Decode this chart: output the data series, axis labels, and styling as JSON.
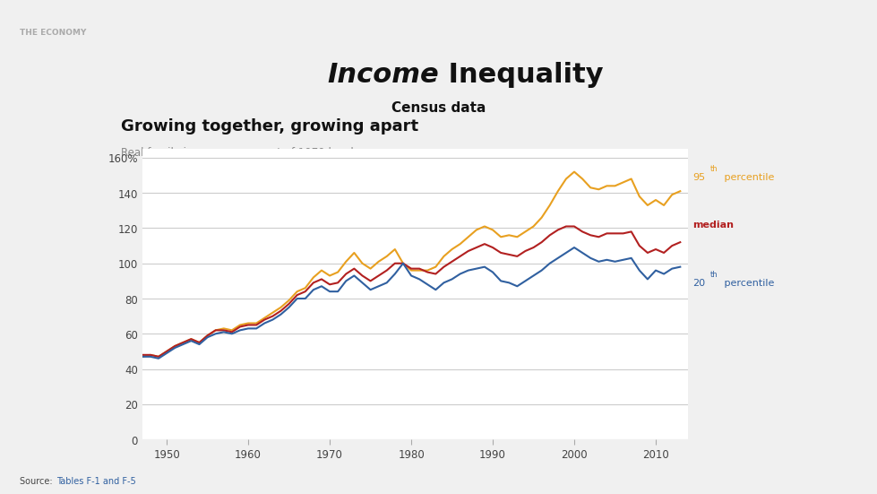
{
  "title_italic": "Income",
  "title_normal": " Inequality",
  "subtitle": "Census data",
  "chart_title": "Growing together, growing apart",
  "chart_subtitle": "Real family income as percent of 1979 level",
  "background_color": "#f0f0f0",
  "plot_bg_color": "#ffffff",
  "header_bg_color": "#d8d8d8",
  "years": [
    1947,
    1948,
    1949,
    1950,
    1951,
    1952,
    1953,
    1954,
    1955,
    1956,
    1957,
    1958,
    1959,
    1960,
    1961,
    1962,
    1963,
    1964,
    1965,
    1966,
    1967,
    1968,
    1969,
    1970,
    1971,
    1972,
    1973,
    1974,
    1975,
    1976,
    1977,
    1978,
    1979,
    1980,
    1981,
    1982,
    1983,
    1984,
    1985,
    1986,
    1987,
    1988,
    1989,
    1990,
    1991,
    1992,
    1993,
    1994,
    1995,
    1996,
    1997,
    1998,
    1999,
    2000,
    2001,
    2002,
    2003,
    2004,
    2005,
    2006,
    2007,
    2008,
    2009,
    2010,
    2011,
    2012,
    2013
  ],
  "p95": [
    47,
    48,
    47,
    50,
    53,
    55,
    57,
    55,
    59,
    62,
    63,
    62,
    65,
    66,
    66,
    69,
    72,
    75,
    79,
    84,
    86,
    92,
    96,
    93,
    95,
    101,
    106,
    100,
    97,
    101,
    104,
    108,
    100,
    96,
    96,
    96,
    98,
    104,
    108,
    111,
    115,
    119,
    121,
    119,
    115,
    116,
    115,
    118,
    121,
    126,
    133,
    141,
    148,
    152,
    148,
    143,
    142,
    144,
    144,
    146,
    148,
    138,
    133,
    136,
    133,
    139,
    141
  ],
  "median": [
    48,
    48,
    47,
    50,
    53,
    55,
    57,
    55,
    59,
    62,
    62,
    61,
    64,
    65,
    65,
    68,
    70,
    73,
    77,
    82,
    84,
    89,
    91,
    88,
    89,
    94,
    97,
    93,
    90,
    93,
    96,
    100,
    100,
    97,
    97,
    95,
    94,
    98,
    101,
    104,
    107,
    109,
    111,
    109,
    106,
    105,
    104,
    107,
    109,
    112,
    116,
    119,
    121,
    121,
    118,
    116,
    115,
    117,
    117,
    117,
    118,
    110,
    106,
    108,
    106,
    110,
    112
  ],
  "p20": [
    47,
    47,
    46,
    49,
    52,
    54,
    56,
    54,
    58,
    60,
    61,
    60,
    62,
    63,
    63,
    66,
    68,
    71,
    75,
    80,
    80,
    85,
    87,
    84,
    84,
    90,
    93,
    89,
    85,
    87,
    89,
    94,
    100,
    93,
    91,
    88,
    85,
    89,
    91,
    94,
    96,
    97,
    98,
    95,
    90,
    89,
    87,
    90,
    93,
    96,
    100,
    103,
    106,
    109,
    106,
    103,
    101,
    102,
    101,
    102,
    103,
    96,
    91,
    96,
    94,
    97,
    98
  ],
  "color_p95": "#e8a020",
  "color_median": "#b22020",
  "color_p20": "#3060a0",
  "source_text": "Source: ",
  "source_link": "Tables F-1 and F-5",
  "ylim": [
    0,
    165
  ],
  "yticks": [
    0,
    20,
    40,
    60,
    80,
    100,
    120,
    140,
    160
  ],
  "ytick_labels": [
    "0",
    "20",
    "40",
    "60",
    "80",
    "100",
    "120",
    "140",
    "160%"
  ],
  "xlim": [
    1947,
    2014
  ],
  "xticks": [
    1950,
    1960,
    1970,
    1980,
    1990,
    2000,
    2010
  ]
}
